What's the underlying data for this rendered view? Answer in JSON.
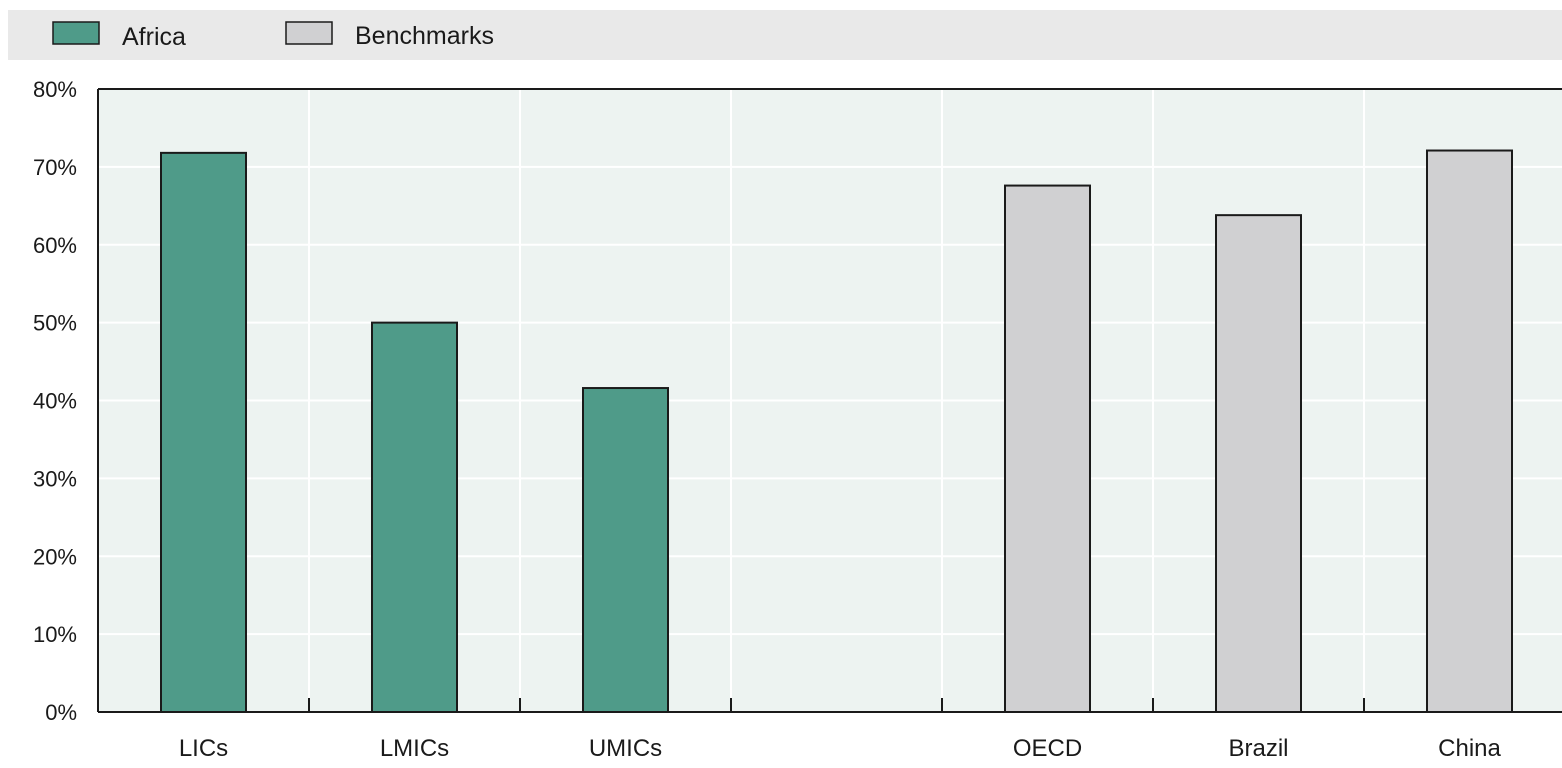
{
  "colors": {
    "africa": "#4f9b89",
    "benchmarks": "#d0d0d2",
    "legend_background": "#e9e9e9",
    "plot_background": "#edf3f1",
    "bar_outline": "#1a1a1a"
  },
  "chart_data": {
    "type": "bar",
    "title": "",
    "xlabel": "",
    "ylabel": "",
    "ylim": [
      0,
      80
    ],
    "y_ticks": [
      0,
      10,
      20,
      30,
      40,
      50,
      60,
      70,
      80
    ],
    "y_tick_labels": [
      "0%",
      "10%",
      "20%",
      "30%",
      "40%",
      "50%",
      "60%",
      "70%",
      "80%"
    ],
    "categories": [
      "LICs",
      "LMICs",
      "UMICs",
      "",
      "OECD",
      "Brazil",
      "China"
    ],
    "series": [
      {
        "name": "Africa",
        "color_key": "africa",
        "values": [
          71.8,
          50.0,
          41.6,
          null,
          null,
          null,
          null
        ]
      },
      {
        "name": "Benchmarks",
        "color_key": "benchmarks",
        "values": [
          null,
          null,
          null,
          null,
          67.6,
          63.8,
          72.1
        ]
      }
    ],
    "grid": true,
    "legend_position": "top-left"
  }
}
